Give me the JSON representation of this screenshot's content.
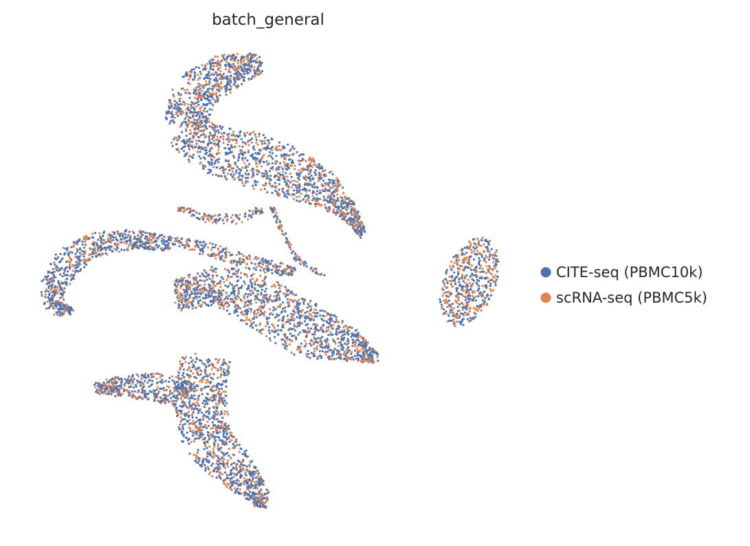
{
  "chart_data": {
    "type": "scatter",
    "title": "batch_general",
    "xlabel": "",
    "ylabel": "",
    "grid": false,
    "axes_visible": false,
    "legend_position": "right",
    "series": [
      {
        "name": "CITE-seq (PBMC10k)",
        "color": "#4C72B0"
      },
      {
        "name": "scRNA-seq (PBMC5k)",
        "color": "#DD8452"
      }
    ]
  }
}
